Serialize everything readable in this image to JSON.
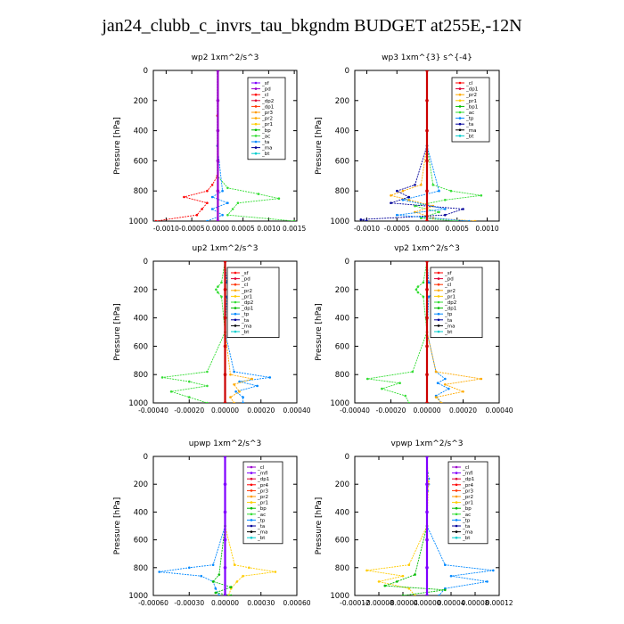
{
  "title": "jan24_clubb_c_invrs_tau_bkgndm  BUDGET at255E,-12N",
  "chart_data": [
    {
      "type": "line",
      "title": "wp2   1xm^2/s^3",
      "ylabel": "Pressure [hPa]",
      "ylim": [
        1000,
        0
      ],
      "xlim": [
        -0.00125,
        0.00155
      ],
      "yticks": [
        "0",
        "200",
        "400",
        "600",
        "800",
        "1000"
      ],
      "xticks": [
        {
          "v": -0.001,
          "label": "-0.0010"
        },
        {
          "v": -0.0005,
          "label": "-0.0005"
        },
        {
          "v": 0.0,
          "label": "0.0000"
        },
        {
          "v": 0.0005,
          "label": "0.0005"
        },
        {
          "v": 0.001,
          "label": "0.0010"
        },
        {
          "v": 0.0015,
          "label": "0.0015"
        }
      ],
      "legend": [
        "_sf",
        "_pd",
        "_cl",
        "_dp2",
        "_dp1",
        "_pr3",
        "_pr2",
        "_pr1",
        "_bp",
        "_ac",
        "_ta",
        "_ma",
        "_bt"
      ],
      "colors": [
        "#7f00ff",
        "#9900cc",
        "#ff0000",
        "#dd0033",
        "#ff3300",
        "#ff9900",
        "#ffaa00",
        "#ffcc00",
        "#00bb00",
        "#33dd33",
        "#0088ff",
        "#000099",
        "#00cccc"
      ],
      "series": [
        {
          "p": [
            0,
            300,
            500,
            700,
            780,
            820,
            850,
            880,
            920,
            960,
            1000
          ],
          "x": [
            0,
            0,
            0,
            0,
            0.0002,
            0.0008,
            0.0012,
            0.0004,
            0.0003,
            0.0002,
            0.0015
          ],
          "color": "#33dd33"
        },
        {
          "p": [
            0,
            300,
            500,
            700,
            760,
            800,
            840,
            880,
            920,
            960,
            1000
          ],
          "x": [
            0,
            0,
            0,
            0,
            -0.0001,
            -0.0002,
            -0.00065,
            -0.0002,
            -0.0003,
            -0.0004,
            -0.0012
          ],
          "color": "#ff0000"
        },
        {
          "p": [
            0,
            500,
            800,
            840,
            880,
            920,
            960,
            1000
          ],
          "x": [
            0,
            0,
            0.0001,
            -0.0001,
            0.0002,
            -0.0001,
            0.0001,
            -0.0002
          ],
          "color": "#0088ff"
        },
        {
          "p": [
            0,
            200,
            400,
            600,
            800,
            1000
          ],
          "x": [
            1e-05,
            1e-05,
            1e-05,
            1e-05,
            1e-05,
            1e-05
          ],
          "color": "#9900cc",
          "thick": true
        }
      ]
    },
    {
      "type": "line",
      "title": "wp3   1xm^{3} s^{-4}",
      "ylabel": "Pressure [hPa]",
      "ylim": [
        1000,
        0
      ],
      "xlim": [
        -0.0012,
        0.0012
      ],
      "yticks": [
        "0",
        "200",
        "400",
        "600",
        "800",
        "1000"
      ],
      "xticks": [
        {
          "v": -0.001,
          "label": "-0.0010"
        },
        {
          "v": -0.0005,
          "label": "-0.0005"
        },
        {
          "v": 0.0,
          "label": "0.0000"
        },
        {
          "v": 0.0005,
          "label": "0.0005"
        },
        {
          "v": 0.001,
          "label": "0.0010"
        }
      ],
      "legend": [
        "_cl",
        "_dp1",
        "_pr2",
        "_pr1",
        "_bp1",
        "_ac",
        "_tp",
        "_ta",
        "_ma",
        "_bt"
      ],
      "colors": [
        "#ff0000",
        "#dd0033",
        "#ffaa00",
        "#ffcc00",
        "#00bb00",
        "#33dd33",
        "#0088ff",
        "#000099",
        "#000000",
        "#00cccc"
      ],
      "series": [
        {
          "p": [
            0,
            500,
            760,
            800,
            830,
            860,
            900,
            940,
            980,
            1000
          ],
          "x": [
            0,
            0,
            0.0001,
            0.0004,
            0.0009,
            0.0003,
            -0.0002,
            0.0002,
            -0.0001,
            0.0005
          ],
          "color": "#33dd33"
        },
        {
          "p": [
            0,
            500,
            760,
            800,
            830,
            860,
            900,
            940,
            980,
            1000
          ],
          "x": [
            0,
            0,
            -0.0001,
            -0.0004,
            -0.0006,
            -0.0003,
            0.0001,
            -0.0002,
            0.0001,
            0.0008
          ],
          "color": "#ffaa00"
        },
        {
          "p": [
            0,
            500,
            760,
            800,
            840,
            880,
            920,
            960,
            990,
            1000
          ],
          "x": [
            0,
            0,
            -0.0002,
            -0.0005,
            -0.0003,
            -0.0006,
            0.0006,
            0.0003,
            -0.0011,
            -0.001
          ],
          "color": "#000099"
        },
        {
          "p": [
            0,
            500,
            800,
            860,
            920,
            960,
            1000
          ],
          "x": [
            0,
            0,
            0.0002,
            -0.0004,
            0.0003,
            -0.0005,
            0.0007
          ],
          "color": "#0088ff"
        },
        {
          "p": [
            0,
            200,
            400,
            600,
            800,
            1000
          ],
          "x": [
            0,
            0,
            0,
            0,
            0,
            0
          ],
          "color": "#cc0000",
          "thick": true
        }
      ]
    },
    {
      "type": "line",
      "title": "up2   1xm^2/s^3",
      "ylabel": "Pressure [hPa]",
      "ylim": [
        1000,
        0
      ],
      "xlim": [
        -0.0004,
        0.0004
      ],
      "yticks": [
        "0",
        "200",
        "400",
        "600",
        "800",
        "1000"
      ],
      "xticks": [
        {
          "v": -0.0004,
          "label": "-0.00040"
        },
        {
          "v": -0.0002,
          "label": "-0.00020"
        },
        {
          "v": 0.0,
          "label": "0.00000"
        },
        {
          "v": 0.0002,
          "label": "0.00020"
        },
        {
          "v": 0.0004,
          "label": "0.00040"
        }
      ],
      "legend": [
        "_sf",
        "_pd",
        "_cl",
        "_pr2",
        "_pr1",
        "_dp2",
        "_dp1",
        "_tp",
        "_ta",
        "_ma",
        "_bt"
      ],
      "colors": [
        "#ff0000",
        "#dd0033",
        "#ff3300",
        "#ffaa00",
        "#ffcc00",
        "#33dd33",
        "#00bb00",
        "#0088ff",
        "#000099",
        "#000000",
        "#00cccc"
      ],
      "series": [
        {
          "p": [
            0,
            150,
            180,
            200,
            220,
            250,
            500,
            780,
            820,
            850,
            880,
            920,
            960,
            1000
          ],
          "x": [
            0,
            -2e-05,
            -4e-05,
            -5e-05,
            -4e-05,
            -2e-05,
            0,
            -0.0001,
            -0.00035,
            -0.0002,
            -0.0001,
            -0.0003,
            -0.0002,
            -0.0001
          ],
          "color": "#33dd33"
        },
        {
          "p": [
            0,
            150,
            180,
            200,
            220,
            250,
            500,
            780,
            820,
            850,
            880,
            920,
            960,
            1000
          ],
          "x": [
            0,
            1e-05,
            3e-05,
            4e-05,
            3e-05,
            1e-05,
            0,
            5e-05,
            0.00025,
            8e-05,
            0.00018,
            6e-05,
            0.0001,
            0.0001
          ],
          "color": "#0088ff"
        },
        {
          "p": [
            0,
            500,
            800,
            830,
            870,
            920,
            960,
            1000
          ],
          "x": [
            0,
            0,
            3e-05,
            0.00015,
            5e-05,
            8e-05,
            3e-05,
            5e-05
          ],
          "color": "#ffaa00"
        },
        {
          "p": [
            0,
            200,
            400,
            600,
            800,
            1000
          ],
          "x": [
            0,
            0,
            0,
            0,
            0,
            0
          ],
          "color": "#cc0000",
          "thick": true
        }
      ]
    },
    {
      "type": "line",
      "title": "vp2   1xm^2/s^3",
      "ylabel": "Pressure [hPa]",
      "ylim": [
        1000,
        0
      ],
      "xlim": [
        -0.0004,
        0.0004
      ],
      "yticks": [
        "0",
        "200",
        "400",
        "600",
        "800",
        "1000"
      ],
      "xticks": [
        {
          "v": -0.0004,
          "label": "-0.00040"
        },
        {
          "v": -0.0002,
          "label": "-0.00020"
        },
        {
          "v": 0.0,
          "label": "0.00000"
        },
        {
          "v": 0.0002,
          "label": "0.00020"
        },
        {
          "v": 0.0004,
          "label": "0.00040"
        }
      ],
      "legend": [
        "_sf",
        "_pd",
        "_cl",
        "_pr2",
        "_pr1",
        "_dp2",
        "_dp1",
        "_tp",
        "_ta",
        "_ma",
        "_bt"
      ],
      "colors": [
        "#ff0000",
        "#dd0033",
        "#ff3300",
        "#ffaa00",
        "#ffcc00",
        "#33dd33",
        "#00bb00",
        "#0088ff",
        "#000099",
        "#000000",
        "#00cccc"
      ],
      "series": [
        {
          "p": [
            0,
            150,
            180,
            200,
            220,
            250,
            500,
            780,
            830,
            860,
            900,
            950,
            1000
          ],
          "x": [
            0,
            -2e-05,
            -5e-05,
            -6e-05,
            -5e-05,
            -2e-05,
            0,
            -8e-05,
            -0.00033,
            -0.00015,
            -0.00025,
            -0.00012,
            -0.0001
          ],
          "color": "#33dd33"
        },
        {
          "p": [
            0,
            150,
            180,
            200,
            220,
            250,
            500,
            780,
            830,
            860,
            900,
            950,
            1000
          ],
          "x": [
            0,
            1e-05,
            4e-05,
            5e-05,
            4e-05,
            1e-05,
            0,
            5e-05,
            0.0001,
            6e-05,
            0.00012,
            5e-05,
            8e-05
          ],
          "color": "#0088ff"
        },
        {
          "p": [
            0,
            500,
            780,
            830,
            870,
            920,
            960,
            1000
          ],
          "x": [
            0,
            0,
            5e-05,
            0.0003,
            0.0001,
            0.0002,
            5e-05,
            8e-05
          ],
          "color": "#ffaa00"
        },
        {
          "p": [
            0,
            200,
            400,
            600,
            800,
            1000
          ],
          "x": [
            0,
            0,
            0,
            0,
            0,
            0
          ],
          "color": "#cc0000",
          "thick": true
        }
      ]
    },
    {
      "type": "line",
      "title": "upwp   1xm^2/s^3",
      "ylabel": "Pressure [hPa]",
      "ylim": [
        1000,
        0
      ],
      "xlim": [
        -0.0006,
        0.0006
      ],
      "yticks": [
        "0",
        "200",
        "400",
        "600",
        "800",
        "1000"
      ],
      "xticks": [
        {
          "v": -0.0006,
          "label": "-0.00060"
        },
        {
          "v": -0.0003,
          "label": "-0.00030"
        },
        {
          "v": 0.0,
          "label": "0.00000"
        },
        {
          "v": 0.0003,
          "label": "0.00030"
        },
        {
          "v": 0.0006,
          "label": "0.00060"
        }
      ],
      "legend": [
        "_cl",
        "_mfl",
        "_dp1",
        "_pr4",
        "_pr3",
        "_pr2",
        "_pr1",
        "_bp",
        "_ac",
        "_tp",
        "_ta",
        "_ma",
        "_bt"
      ],
      "colors": [
        "#9900cc",
        "#7f00ff",
        "#dd0033",
        "#ff0000",
        "#ff3300",
        "#ff9900",
        "#ffcc00",
        "#00bb00",
        "#33dd33",
        "#0088ff",
        "#000099",
        "#000000",
        "#00cccc"
      ],
      "series": [
        {
          "p": [
            0,
            500,
            780,
            800,
            830,
            860,
            900,
            950,
            1000
          ],
          "x": [
            0,
            0,
            -0.0001,
            -0.0003,
            -0.00055,
            -0.0002,
            -0.0001,
            -8e-05,
            -5e-05
          ],
          "color": "#0088ff"
        },
        {
          "p": [
            0,
            500,
            780,
            800,
            830,
            860,
            900,
            950,
            1000
          ],
          "x": [
            0,
            0,
            8e-05,
            0.0002,
            0.00042,
            0.00015,
            0.0001,
            5e-05,
            3e-05
          ],
          "color": "#ffcc00"
        },
        {
          "p": [
            0,
            500,
            850,
            900,
            940,
            980,
            1000
          ],
          "x": [
            0,
            0,
            -5e-05,
            -0.0001,
            5e-05,
            -8e-05,
            5e-05
          ],
          "color": "#00bb00"
        },
        {
          "p": [
            0,
            200,
            400,
            600,
            800,
            1000
          ],
          "x": [
            0,
            0,
            0,
            0,
            0,
            0
          ],
          "color": "#7f00ff",
          "thick": true
        }
      ]
    },
    {
      "type": "line",
      "title": "vpwp   1xm^2/s^3",
      "ylabel": "Pressure [hPa]",
      "ylim": [
        1000,
        0
      ],
      "xlim": [
        -0.00012,
        0.00012
      ],
      "yticks": [
        "0",
        "200",
        "400",
        "600",
        "800",
        "1000"
      ],
      "xticks": [
        {
          "v": -0.00012,
          "label": "-0.00012"
        },
        {
          "v": -8e-05,
          "label": "-0.00008"
        },
        {
          "v": -4e-05,
          "label": "-0.00004"
        },
        {
          "v": 0.0,
          "label": "0.00000"
        },
        {
          "v": 4e-05,
          "label": "0.00004"
        },
        {
          "v": 8e-05,
          "label": "0.00008"
        },
        {
          "v": 0.00012,
          "label": "0.00012"
        }
      ],
      "legend": [
        "_cl",
        "_mfl",
        "_dp1",
        "_pr4",
        "_pr3",
        "_pr2",
        "_pr1",
        "_bp",
        "_ac",
        "_tp",
        "_ta",
        "_ma",
        "_bt"
      ],
      "colors": [
        "#9900cc",
        "#7f00ff",
        "#dd0033",
        "#ff0000",
        "#ff3300",
        "#ff9900",
        "#ffcc00",
        "#00bb00",
        "#33dd33",
        "#0088ff",
        "#000099",
        "#000000",
        "#00cccc"
      ],
      "series": [
        {
          "p": [
            0,
            120,
            160,
            200,
            250,
            500,
            780,
            820,
            860,
            900,
            950,
            1000
          ],
          "x": [
            0,
            1e-06,
            3e-06,
            3e-06,
            1e-06,
            0,
            3e-05,
            0.00011,
            4e-05,
            0.0001,
            3e-05,
            2e-05
          ],
          "color": "#0088ff"
        },
        {
          "p": [
            0,
            180,
            200,
            500,
            780,
            820,
            860,
            900,
            950,
            1000
          ],
          "x": [
            0,
            2e-06,
            2e-06,
            0,
            -3e-05,
            -0.0001,
            -4e-05,
            -8e-05,
            -3e-05,
            -2e-05
          ],
          "color": "#ffcc00"
        },
        {
          "p": [
            0,
            500,
            850,
            900,
            930,
            960,
            1000
          ],
          "x": [
            0,
            0,
            -2e-05,
            -5e-05,
            -7e-05,
            3e-05,
            -4e-05
          ],
          "color": "#00bb00"
        },
        {
          "p": [
            0,
            200,
            400,
            600,
            800,
            1000
          ],
          "x": [
            0,
            0,
            0,
            0,
            0,
            0
          ],
          "color": "#7f00ff",
          "thick": true
        }
      ]
    }
  ]
}
